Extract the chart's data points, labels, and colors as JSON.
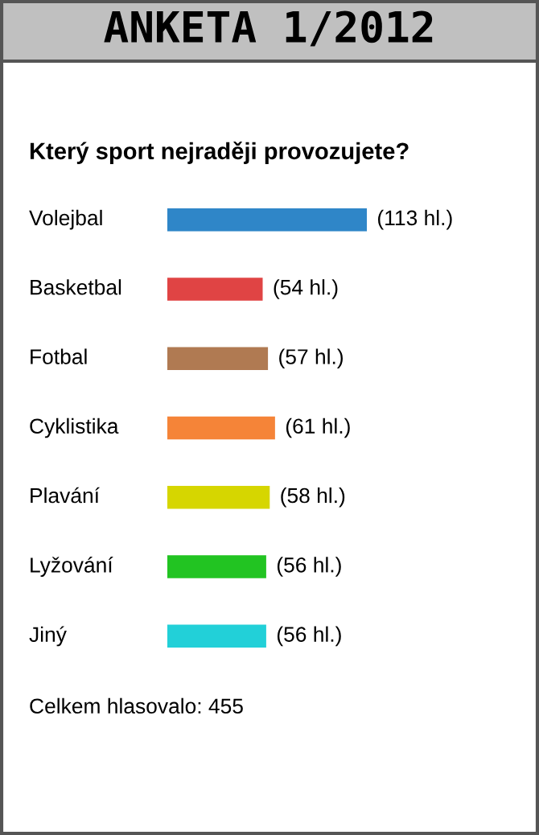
{
  "chart_data": {
    "type": "bar",
    "orientation": "horizontal",
    "title": "ANKETA 1/2012",
    "subtitle": "Který sport nejraději provozujete?",
    "categories": [
      "Volejbal",
      "Basketbal",
      "Fotbal",
      "Cyklistika",
      "Plavání",
      "Lyžování",
      "Jiný"
    ],
    "values": [
      113,
      54,
      57,
      61,
      58,
      56,
      56
    ],
    "value_labels": [
      "(113 hl.)",
      "(54 hl.)",
      "(57 hl.)",
      "(61 hl.)",
      "(58 hl.)",
      "(56 hl.)",
      "(56 hl.)"
    ],
    "colors": [
      "#2f86c8",
      "#e04444",
      "#b07a52",
      "#f58438",
      "#d6d600",
      "#22c422",
      "#22d0d8"
    ],
    "annotations": [
      "Celkem hlasovalo: 455"
    ]
  }
}
